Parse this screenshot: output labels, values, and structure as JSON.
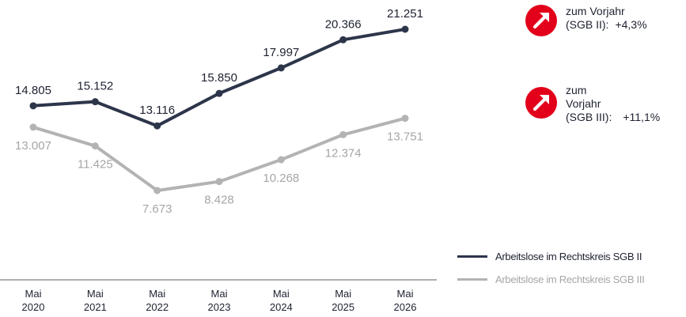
{
  "chart_data": {
    "type": "line",
    "categories": [
      "Mai\n2020",
      "Mai\n2021",
      "Mai\n2022",
      "Mai\n2023",
      "Mai\n2024",
      "Mai\n2025",
      "Mai\n2026"
    ],
    "series": [
      {
        "name": "Arbeitslose im Rechtskreis SGB II",
        "values": [
          14805,
          15152,
          13116,
          15850,
          17997,
          20366,
          21251
        ],
        "labels": [
          "14.805",
          "15.152",
          "13.116",
          "15.850",
          "17.997",
          "20.366",
          "21.251"
        ],
        "color": "#2d354a",
        "label_position": "above"
      },
      {
        "name": "Arbeitslose im Rechtskreis SGB III",
        "values": [
          13007,
          11425,
          7673,
          8428,
          10268,
          12374,
          13751
        ],
        "labels": [
          "13.007",
          "11.425",
          "7.673",
          "8.428",
          "10.268",
          "12.374",
          "13.751"
        ],
        "color": "#b3b3b3",
        "label_position": "below"
      }
    ],
    "title": "",
    "xlabel": "",
    "ylabel": "",
    "grid": false,
    "legend": "bottom-right"
  },
  "indicators": [
    {
      "line1": "zum  Vorjahr",
      "line2_prefix": "(SGB II):",
      "value": "+4,3%",
      "icon": "arrow-up-right-icon",
      "color": "#e2001a"
    },
    {
      "line1": "zum",
      "line2": "Vorjahr",
      "line3_prefix": "(SGB III):",
      "value": "+11,1%",
      "icon": "arrow-up-right-icon",
      "color": "#e2001a"
    }
  ],
  "colors": {
    "text_dark": "#1e2230",
    "text_light": "#a6a6a6",
    "axis": "#7f7f7f"
  }
}
